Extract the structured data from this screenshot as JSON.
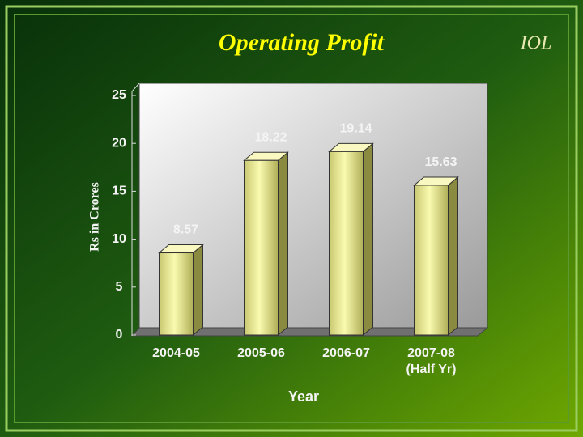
{
  "chart_data": {
    "type": "bar",
    "title": "Operating Profit",
    "logo": "IOL",
    "categories": [
      "2004-05",
      "2005-06",
      "2006-07",
      "2007-08 (Half Yr)"
    ],
    "values": [
      8.57,
      18.22,
      19.14,
      15.63
    ],
    "color": "#e8e890",
    "x_label": "Year",
    "y_label": "Rs in Crores",
    "ylim": [
      0,
      25
    ],
    "yticks": [
      0,
      5,
      10,
      15,
      20,
      25
    ],
    "grid": false
  }
}
